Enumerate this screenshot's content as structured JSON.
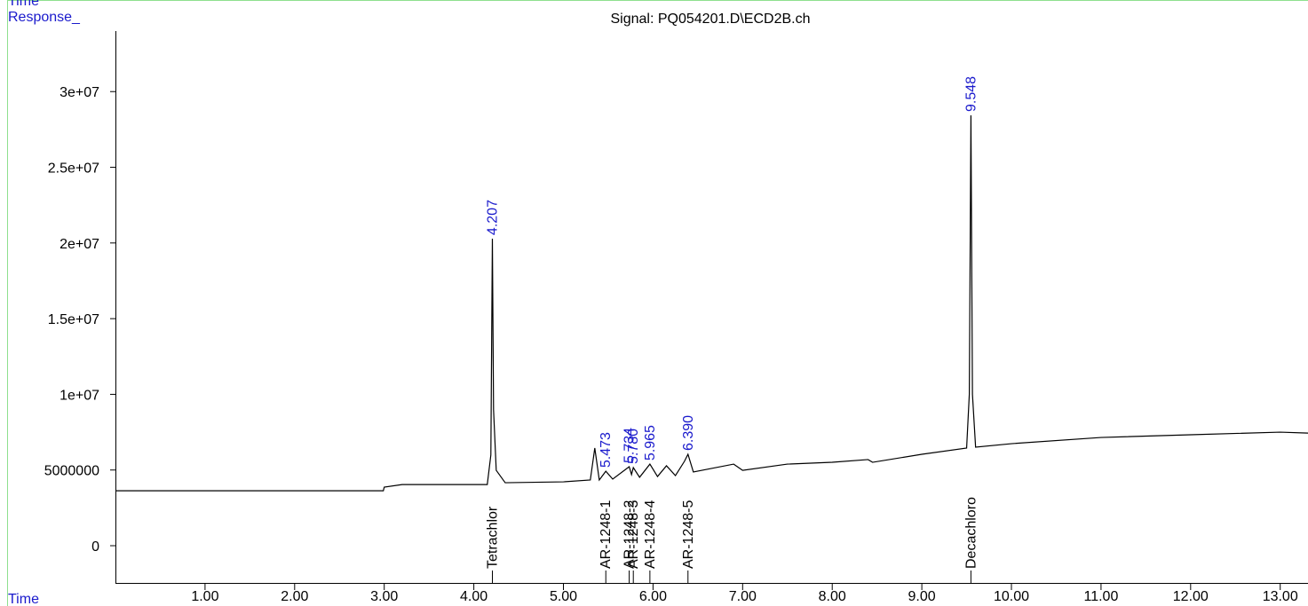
{
  "chart_data": {
    "type": "line",
    "header_text": "Time",
    "title": "Signal: PQ054201.D\\ECD2B.ch",
    "ylabel": "Response_",
    "xlabel": "Time",
    "color": "#000000",
    "x": [
      0,
      2.99,
      3.0,
      3.2,
      4.15,
      4.19,
      4.207,
      4.22,
      4.25,
      4.35,
      5.0,
      5.3,
      5.35,
      5.4,
      5.473,
      5.55,
      5.734,
      5.76,
      5.78,
      5.85,
      5.965,
      6.05,
      6.15,
      6.25,
      6.35,
      6.39,
      6.45,
      6.9,
      7.0,
      7.5,
      8.0,
      8.4,
      8.45,
      9.0,
      9.5,
      9.53,
      9.548,
      9.565,
      9.6,
      10.0,
      11.0,
      12.0,
      13.0,
      13.31
    ],
    "values": [
      3630000,
      3630000,
      3870000,
      4040000,
      4040000,
      6000000,
      20280000,
      9000000,
      4980000,
      4160000,
      4220000,
      4340000,
      6450000,
      4340000,
      4920000,
      4400000,
      5220000,
      4700000,
      5160000,
      4520000,
      5390000,
      4570000,
      5280000,
      4630000,
      5570000,
      6040000,
      4870000,
      5390000,
      4980000,
      5390000,
      5510000,
      5690000,
      5510000,
      6040000,
      6450000,
      10000000,
      28430000,
      10000000,
      6510000,
      6740000,
      7150000,
      7330000,
      7500000,
      7440000
    ],
    "xlim": [
      0,
      13.31
    ],
    "ylim": [
      -2460000,
      34000000
    ],
    "xticks": [
      {
        "value": 1,
        "label": "1.00"
      },
      {
        "value": 2,
        "label": "2.00"
      },
      {
        "value": 3,
        "label": "3.00"
      },
      {
        "value": 4,
        "label": "4.00"
      },
      {
        "value": 5,
        "label": "5.00"
      },
      {
        "value": 6,
        "label": "6.00"
      },
      {
        "value": 7,
        "label": "7.00"
      },
      {
        "value": 8,
        "label": "8.00"
      },
      {
        "value": 9,
        "label": "9.00"
      },
      {
        "value": 10,
        "label": "10.00"
      },
      {
        "value": 11,
        "label": "11.00"
      },
      {
        "value": 12,
        "label": "12.00"
      },
      {
        "value": 13,
        "label": "13.00"
      }
    ],
    "yticks": [
      0,
      5000000,
      {
        "value": 10000000,
        "label": "1e+07"
      },
      {
        "value": 15000000,
        "label": "1.5e+07"
      },
      {
        "value": 20000000,
        "label": "2e+07"
      },
      {
        "value": 25000000,
        "label": "2.5e+07"
      },
      {
        "value": 30000000,
        "label": "3e+07"
      }
    ],
    "peak_labels": [
      4.207,
      5.473,
      5.734,
      {
        "value": 5.78,
        "label": "5.780"
      },
      5.965,
      {
        "value": 6.39,
        "label": "6.390"
      },
      9.548
    ],
    "peak_label_color": "#1a1acc",
    "compounds": [
      "Tetrachlor",
      "AR-1248-1",
      "AR-1248-2",
      "AR-1248-3",
      "AR-1248-4",
      "AR-1248-5",
      "Decachloro"
    ],
    "grid": false
  }
}
